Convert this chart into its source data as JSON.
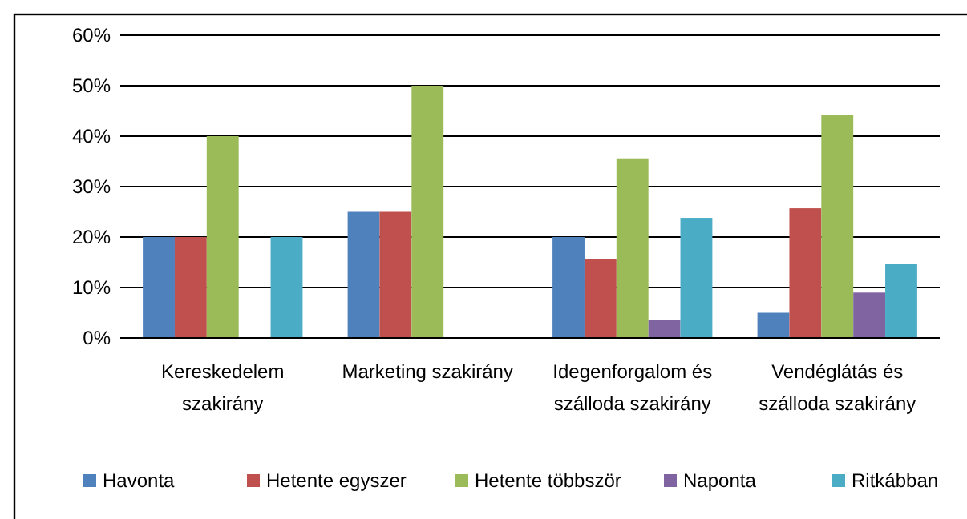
{
  "chart_data": {
    "type": "bar",
    "categories": [
      "Kereskedelem szakirány",
      "Marketing szakirány",
      "Idegenforgalom és szálloda szakirány",
      "Vendéglátás és szálloda szakirány"
    ],
    "series": [
      {
        "name": "Havonta",
        "color": "#4f81bd",
        "values": [
          20,
          25,
          20,
          5
        ]
      },
      {
        "name": "Hetente egyszer",
        "color": "#c0504d",
        "values": [
          20,
          25,
          15.6,
          25.7
        ]
      },
      {
        "name": "Hetente többször",
        "color": "#9bbb59",
        "values": [
          40,
          50,
          35.6,
          44.2
        ]
      },
      {
        "name": "Naponta",
        "color": "#8064a2",
        "values": [
          0,
          0,
          3.5,
          9
        ]
      },
      {
        "name": "Ritkábban",
        "color": "#4bacc6",
        "values": [
          20,
          0,
          23.8,
          14.7
        ]
      }
    ],
    "ylim": [
      0,
      60
    ],
    "yticks": [
      {
        "value": 0,
        "label": "0%"
      },
      {
        "value": 10,
        "label": "10%"
      },
      {
        "value": 20,
        "label": "20%"
      },
      {
        "value": 30,
        "label": "30%"
      },
      {
        "value": 40,
        "label": "40%"
      },
      {
        "value": 50,
        "label": "50%"
      },
      {
        "value": 60,
        "label": "60%"
      }
    ],
    "grid": "y",
    "legend": "bottom"
  }
}
